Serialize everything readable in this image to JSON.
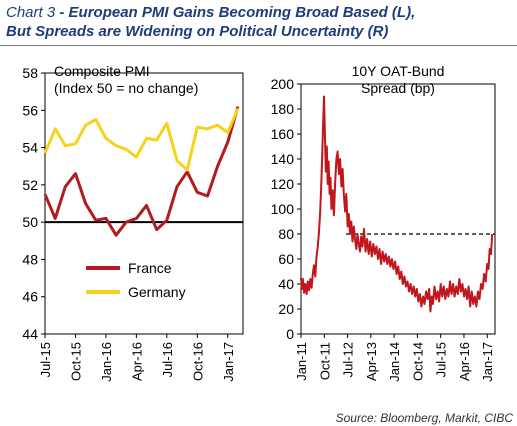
{
  "header": {
    "prefix": "Chart 3",
    "title": " - European PMI Gains Becoming Broad Based (L),",
    "subtitle": "But Spreads are Widening on Political Uncertainty (R)"
  },
  "source": "Source:  Bloomberg, Markit, CIBC",
  "colors": {
    "france": "#b41a1f",
    "germany": "#f7d21a",
    "spread": "#c0161c",
    "axis": "#000000"
  },
  "chart_data": [
    {
      "type": "line",
      "title": "Composite PMI",
      "subtitle": "(Index 50 = no change)",
      "ylim": [
        44,
        58
      ],
      "yticks": [
        44,
        46,
        48,
        50,
        52,
        54,
        56,
        58
      ],
      "xrange": [
        0,
        19.5
      ],
      "xtick_labels": [
        {
          "label": "Jul-15",
          "x": 0
        },
        {
          "label": "Oct-15",
          "x": 3
        },
        {
          "label": "Jan-16",
          "x": 6
        },
        {
          "label": "Apr-16",
          "x": 9
        },
        {
          "label": "Jul-16",
          "x": 12
        },
        {
          "label": "Oct-16",
          "x": 15
        },
        {
          "label": "Jan-17",
          "x": 18
        }
      ],
      "reference_line": 50,
      "series": [
        {
          "name": "France",
          "values": [
            51.5,
            50.2,
            51.9,
            52.6,
            51.0,
            50.1,
            50.2,
            49.3,
            50.0,
            50.2,
            50.9,
            49.6,
            50.1,
            51.9,
            52.7,
            51.6,
            51.4,
            53.0,
            54.3,
            56.2
          ]
        },
        {
          "name": "Germany",
          "values": [
            53.7,
            55.0,
            54.1,
            54.2,
            55.2,
            55.5,
            54.5,
            54.1,
            53.9,
            53.5,
            54.5,
            54.4,
            55.3,
            53.3,
            52.8,
            55.1,
            55.0,
            55.2,
            54.8,
            56.1
          ]
        }
      ]
    },
    {
      "type": "line",
      "title": "10Y OAT-Bund",
      "subtitle": "Spread (bp)",
      "ylim": [
        0,
        200
      ],
      "yticks": [
        0,
        20,
        40,
        60,
        80,
        100,
        120,
        140,
        160,
        180,
        200
      ],
      "xrange": [
        2011.0,
        2017.25
      ],
      "xtick_labels": [
        {
          "label": "Jan-11",
          "x": 2011.0
        },
        {
          "label": "Oct-11",
          "x": 2011.75
        },
        {
          "label": "Jul-12",
          "x": 2012.5
        },
        {
          "label": "Apr-13",
          "x": 2013.25
        },
        {
          "label": "Jan-14",
          "x": 2014.0
        },
        {
          "label": "Oct-14",
          "x": 2014.75
        },
        {
          "label": "Jul-15",
          "x": 2015.5
        },
        {
          "label": "Apr-16",
          "x": 2016.25
        },
        {
          "label": "Jan-17",
          "x": 2017.0
        }
      ],
      "reference_line": 80,
      "series": [
        {
          "name": "10Y OAT-Bund Spread",
          "points": [
            [
              2011.0,
              45
            ],
            [
              2011.03,
              36
            ],
            [
              2011.06,
              44
            ],
            [
              2011.1,
              33
            ],
            [
              2011.14,
              40
            ],
            [
              2011.18,
              32
            ],
            [
              2011.22,
              42
            ],
            [
              2011.26,
              35
            ],
            [
              2011.3,
              44
            ],
            [
              2011.34,
              37
            ],
            [
              2011.38,
              48
            ],
            [
              2011.42,
              55
            ],
            [
              2011.46,
              46
            ],
            [
              2011.5,
              62
            ],
            [
              2011.54,
              70
            ],
            [
              2011.58,
              82
            ],
            [
              2011.62,
              98
            ],
            [
              2011.65,
              118
            ],
            [
              2011.68,
              140
            ],
            [
              2011.71,
              165
            ],
            [
              2011.74,
              190
            ],
            [
              2011.77,
              160
            ],
            [
              2011.8,
              130
            ],
            [
              2011.83,
              150
            ],
            [
              2011.86,
              120
            ],
            [
              2011.89,
              138
            ],
            [
              2011.92,
              112
            ],
            [
              2011.95,
              125
            ],
            [
              2011.98,
              100
            ],
            [
              2012.02,
              115
            ],
            [
              2012.06,
              95
            ],
            [
              2012.1,
              120
            ],
            [
              2012.14,
              140
            ],
            [
              2012.18,
              146
            ],
            [
              2012.22,
              128
            ],
            [
              2012.26,
              140
            ],
            [
              2012.3,
              118
            ],
            [
              2012.34,
              132
            ],
            [
              2012.38,
              112
            ],
            [
              2012.42,
              98
            ],
            [
              2012.46,
              112
            ],
            [
              2012.5,
              86
            ],
            [
              2012.54,
              96
            ],
            [
              2012.58,
              80
            ],
            [
              2012.62,
              90
            ],
            [
              2012.66,
              74
            ],
            [
              2012.7,
              86
            ],
            [
              2012.74,
              76
            ],
            [
              2012.78,
              68
            ],
            [
              2012.82,
              80
            ],
            [
              2012.86,
              72
            ],
            [
              2012.9,
              66
            ],
            [
              2012.94,
              78
            ],
            [
              2012.98,
              70
            ],
            [
              2013.03,
              84
            ],
            [
              2013.08,
              66
            ],
            [
              2013.13,
              76
            ],
            [
              2013.18,
              64
            ],
            [
              2013.23,
              74
            ],
            [
              2013.28,
              62
            ],
            [
              2013.33,
              72
            ],
            [
              2013.38,
              64
            ],
            [
              2013.43,
              70
            ],
            [
              2013.48,
              60
            ],
            [
              2013.53,
              68
            ],
            [
              2013.58,
              56
            ],
            [
              2013.63,
              66
            ],
            [
              2013.68,
              58
            ],
            [
              2013.73,
              64
            ],
            [
              2013.78,
              56
            ],
            [
              2013.83,
              62
            ],
            [
              2013.88,
              54
            ],
            [
              2013.93,
              60
            ],
            [
              2013.98,
              52
            ],
            [
              2014.03,
              58
            ],
            [
              2014.08,
              48
            ],
            [
              2014.13,
              54
            ],
            [
              2014.18,
              44
            ],
            [
              2014.23,
              50
            ],
            [
              2014.28,
              40
            ],
            [
              2014.33,
              46
            ],
            [
              2014.38,
              38
            ],
            [
              2014.43,
              42
            ],
            [
              2014.48,
              34
            ],
            [
              2014.53,
              40
            ],
            [
              2014.58,
              32
            ],
            [
              2014.63,
              38
            ],
            [
              2014.68,
              30
            ],
            [
              2014.73,
              36
            ],
            [
              2014.78,
              26
            ],
            [
              2014.83,
              32
            ],
            [
              2014.88,
              22
            ],
            [
              2014.93,
              30
            ],
            [
              2014.98,
              24
            ],
            [
              2015.03,
              34
            ],
            [
              2015.08,
              28
            ],
            [
              2015.13,
              36
            ],
            [
              2015.17,
              18
            ],
            [
              2015.21,
              30
            ],
            [
              2015.25,
              24
            ],
            [
              2015.3,
              38
            ],
            [
              2015.35,
              28
            ],
            [
              2015.4,
              34
            ],
            [
              2015.45,
              26
            ],
            [
              2015.5,
              40
            ],
            [
              2015.55,
              30
            ],
            [
              2015.6,
              38
            ],
            [
              2015.65,
              28
            ],
            [
              2015.7,
              36
            ],
            [
              2015.75,
              30
            ],
            [
              2015.8,
              42
            ],
            [
              2015.85,
              32
            ],
            [
              2015.9,
              40
            ],
            [
              2015.95,
              30
            ],
            [
              2016.0,
              38
            ],
            [
              2016.05,
              32
            ],
            [
              2016.1,
              44
            ],
            [
              2016.15,
              34
            ],
            [
              2016.2,
              40
            ],
            [
              2016.25,
              30
            ],
            [
              2016.3,
              36
            ],
            [
              2016.35,
              28
            ],
            [
              2016.4,
              38
            ],
            [
              2016.45,
              22
            ],
            [
              2016.5,
              34
            ],
            [
              2016.55,
              24
            ],
            [
              2016.6,
              30
            ],
            [
              2016.65,
              22
            ],
            [
              2016.7,
              34
            ],
            [
              2016.75,
              28
            ],
            [
              2016.8,
              40
            ],
            [
              2016.85,
              36
            ],
            [
              2016.9,
              48
            ],
            [
              2016.95,
              42
            ],
            [
              2017.0,
              56
            ],
            [
              2017.04,
              52
            ],
            [
              2017.08,
              68
            ],
            [
              2017.12,
              64
            ],
            [
              2017.16,
              80
            ]
          ]
        }
      ]
    }
  ]
}
